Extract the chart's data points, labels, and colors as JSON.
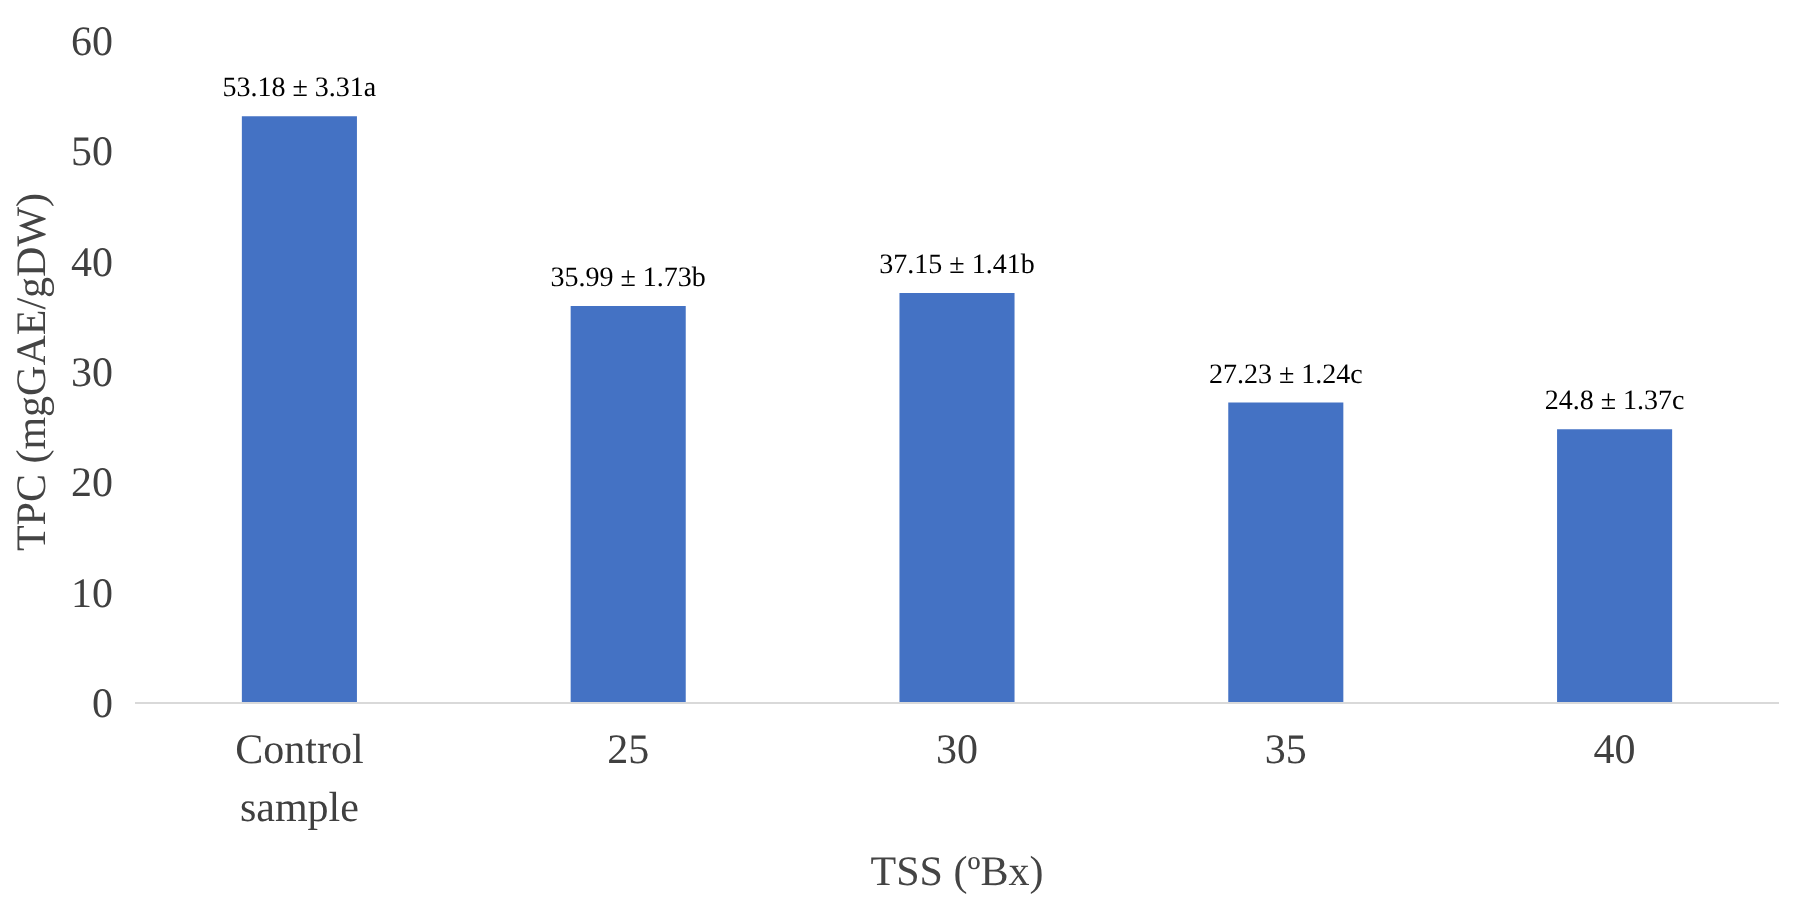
{
  "chart_data": {
    "type": "bar",
    "xlabel": "TSS (ºBx)",
    "ylabel": "TPC (mgGAE/gDW)",
    "categories": [
      "Control sample",
      "25",
      "30",
      "35",
      "40"
    ],
    "values": [
      53.18,
      35.99,
      37.15,
      27.23,
      24.8
    ],
    "value_labels": [
      "53.18 ± 3.31a",
      "35.99 ± 1.73b",
      "37.15 ± 1.41b",
      "27.23 ± 1.24c",
      "24.8 ± 1.37c"
    ],
    "color": "#4472c4",
    "ylim": [
      0,
      60
    ],
    "yticks": [
      0,
      10,
      20,
      30,
      40,
      50,
      60
    ],
    "grid": false
  }
}
